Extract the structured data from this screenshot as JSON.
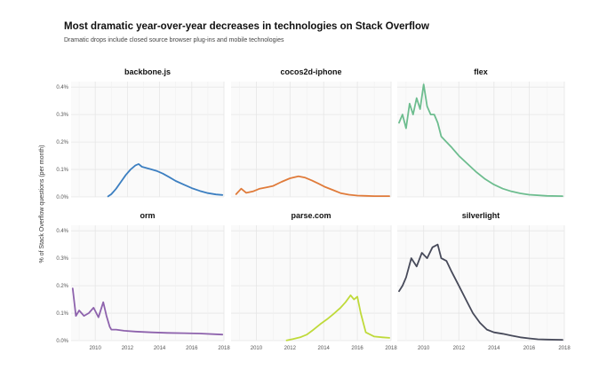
{
  "title": "Most dramatic year-over-year decreases in technologies on Stack Overflow",
  "subtitle": "Dramatic drops include closed source browser plug-ins and mobile technologies",
  "chart_data": {
    "type": "line",
    "title": "Most dramatic year-over-year decreases in technologies on Stack Overflow",
    "subtitle": "Dramatic drops include closed source browser plug-ins and mobile technologies",
    "ylabel": "% of Stack Overflow questions (per month)",
    "xlabel": "",
    "xlim": [
      2008.5,
      2018
    ],
    "ylim": [
      0,
      0.42
    ],
    "x_ticks": [
      2010,
      2012,
      2014,
      2016,
      2018
    ],
    "x_tick_labels": [
      "2010",
      "2012",
      "2014",
      "2016",
      "2018"
    ],
    "y_ticks": [
      0,
      0.1,
      0.2,
      0.3,
      0.4
    ],
    "y_tick_labels": [
      "0.0%",
      "0.1%",
      "0.2%",
      "0.3%",
      "0.4%"
    ],
    "grid": true,
    "panels": [
      {
        "name": "backbone.js",
        "color": "#3c7fc1",
        "x": [
          2010.8,
          2011.0,
          2011.3,
          2011.6,
          2011.9,
          2012.2,
          2012.5,
          2012.7,
          2012.9,
          2013.2,
          2013.5,
          2013.8,
          2014.2,
          2014.6,
          2015.0,
          2015.5,
          2016.0,
          2016.5,
          2017.0,
          2017.5,
          2017.9
        ],
        "y": [
          0.002,
          0.01,
          0.03,
          0.055,
          0.08,
          0.1,
          0.115,
          0.12,
          0.11,
          0.105,
          0.1,
          0.095,
          0.085,
          0.072,
          0.058,
          0.045,
          0.032,
          0.022,
          0.014,
          0.009,
          0.007
        ]
      },
      {
        "name": "cocos2d-iphone",
        "color": "#e07b3a",
        "x": [
          2008.8,
          2009.1,
          2009.4,
          2009.8,
          2010.2,
          2010.6,
          2011.0,
          2011.5,
          2012.0,
          2012.5,
          2012.9,
          2013.3,
          2013.7,
          2014.1,
          2014.6,
          2015.0,
          2015.5,
          2016.0,
          2016.5,
          2017.0,
          2017.9
        ],
        "y": [
          0.01,
          0.03,
          0.015,
          0.02,
          0.03,
          0.035,
          0.04,
          0.055,
          0.068,
          0.075,
          0.07,
          0.06,
          0.048,
          0.036,
          0.024,
          0.014,
          0.008,
          0.005,
          0.004,
          0.003,
          0.003
        ]
      },
      {
        "name": "flex",
        "color": "#6dbd8f",
        "x": [
          2008.6,
          2008.8,
          2009.0,
          2009.2,
          2009.4,
          2009.6,
          2009.8,
          2010.0,
          2010.2,
          2010.4,
          2010.6,
          2010.8,
          2011.0,
          2011.3,
          2011.6,
          2012.0,
          2012.5,
          2013.0,
          2013.5,
          2014.0,
          2014.5,
          2015.0,
          2015.5,
          2016.0,
          2017.0,
          2017.9
        ],
        "y": [
          0.27,
          0.3,
          0.25,
          0.34,
          0.3,
          0.36,
          0.32,
          0.41,
          0.33,
          0.3,
          0.3,
          0.27,
          0.22,
          0.2,
          0.18,
          0.15,
          0.12,
          0.09,
          0.065,
          0.045,
          0.03,
          0.02,
          0.013,
          0.008,
          0.004,
          0.003
        ]
      },
      {
        "name": "orm",
        "color": "#8e63ad",
        "x": [
          2008.6,
          2008.8,
          2009.0,
          2009.3,
          2009.6,
          2009.9,
          2010.2,
          2010.5,
          2010.7,
          2010.9,
          2011.0,
          2011.3,
          2011.8,
          2012.5,
          2013.5,
          2014.5,
          2015.5,
          2016.5,
          2017.9
        ],
        "y": [
          0.19,
          0.09,
          0.11,
          0.09,
          0.1,
          0.12,
          0.085,
          0.14,
          0.09,
          0.05,
          0.04,
          0.04,
          0.036,
          0.033,
          0.03,
          0.028,
          0.027,
          0.026,
          0.022
        ]
      },
      {
        "name": "parse.com",
        "color": "#bfda3a",
        "x": [
          2011.8,
          2012.2,
          2012.6,
          2013.0,
          2013.4,
          2013.8,
          2014.2,
          2014.6,
          2015.0,
          2015.3,
          2015.6,
          2015.8,
          2016.0,
          2016.2,
          2016.5,
          2017.0,
          2017.5,
          2017.9
        ],
        "y": [
          0.001,
          0.006,
          0.012,
          0.022,
          0.04,
          0.06,
          0.078,
          0.098,
          0.12,
          0.14,
          0.165,
          0.15,
          0.16,
          0.1,
          0.03,
          0.015,
          0.012,
          0.01
        ]
      },
      {
        "name": "silverlight",
        "color": "#474a5a",
        "x": [
          2008.6,
          2008.8,
          2009.0,
          2009.3,
          2009.6,
          2009.9,
          2010.2,
          2010.5,
          2010.8,
          2011.0,
          2011.3,
          2011.6,
          2012.0,
          2012.4,
          2012.8,
          2013.2,
          2013.6,
          2014.0,
          2014.5,
          2015.0,
          2015.5,
          2016.0,
          2016.5,
          2017.0,
          2017.9
        ],
        "y": [
          0.18,
          0.2,
          0.23,
          0.3,
          0.27,
          0.32,
          0.3,
          0.34,
          0.35,
          0.3,
          0.29,
          0.25,
          0.2,
          0.15,
          0.1,
          0.065,
          0.04,
          0.03,
          0.025,
          0.018,
          0.012,
          0.008,
          0.005,
          0.004,
          0.003
        ]
      }
    ]
  }
}
